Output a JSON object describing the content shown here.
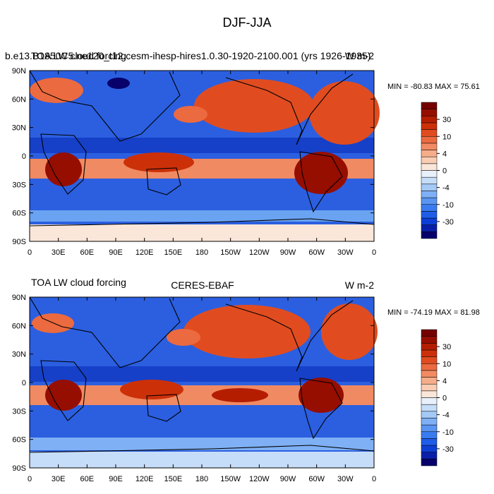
{
  "figure_title": "DJF-JJA",
  "chart_data": [
    {
      "type": "heatmap",
      "title_left": "b.e13.B1850C5.ne120_t12.cesm-ihesp-hires1.0.30-1920-2100.001 (yrs 1926-1935)",
      "title_overlay_left": "TOA LW cloud forcing",
      "title_right": "W m-2",
      "stats": "MIN = -80.83 MAX =  75.61",
      "min": -80.83,
      "max": 75.61,
      "x_ticks": [
        "0",
        "30E",
        "60E",
        "90E",
        "120E",
        "150E",
        "180",
        "150W",
        "120W",
        "90W",
        "60W",
        "30W",
        "0"
      ],
      "y_ticks": [
        "90N",
        "60N",
        "30N",
        "0",
        "30S",
        "60S",
        "90S"
      ],
      "xlim": [
        0,
        360
      ],
      "ylim": [
        -90,
        90
      ]
    },
    {
      "type": "heatmap",
      "title_left": "TOA LW cloud forcing",
      "title_center": "CERES-EBAF",
      "title_right": "W m-2",
      "stats": "MIN = -74.19 MAX =  81.98",
      "min": -74.19,
      "max": 81.98,
      "x_ticks": [
        "0",
        "30E",
        "60E",
        "90E",
        "120E",
        "150E",
        "180",
        "150W",
        "120W",
        "90W",
        "60W",
        "30W",
        "0"
      ],
      "y_ticks": [
        "90N",
        "60N",
        "30N",
        "0",
        "30S",
        "60S",
        "90S"
      ],
      "xlim": [
        0,
        360
      ],
      "ylim": [
        -90,
        90
      ]
    }
  ],
  "colorbar": {
    "levels": [
      -50,
      -40,
      -30,
      -20,
      -15,
      -10,
      -8,
      -6,
      -4,
      -2,
      0,
      2,
      4,
      6,
      8,
      10,
      15,
      20,
      30,
      40,
      50
    ],
    "labels": [
      "30",
      "10",
      "4",
      "0",
      "-4",
      "-10",
      "-30"
    ],
    "colors": [
      "#08006b",
      "#0a1fa8",
      "#0d3fd6",
      "#1f5de8",
      "#3a7bf0",
      "#5a95f2",
      "#7fb0f5",
      "#a4c9f7",
      "#c6ddf9",
      "#e7f0fb",
      "#fbe6da",
      "#f9cdb3",
      "#f6ad8a",
      "#f28b63",
      "#ec6a3f",
      "#e04c20",
      "#cc3009",
      "#b51d00",
      "#960e00",
      "#750000"
    ]
  }
}
